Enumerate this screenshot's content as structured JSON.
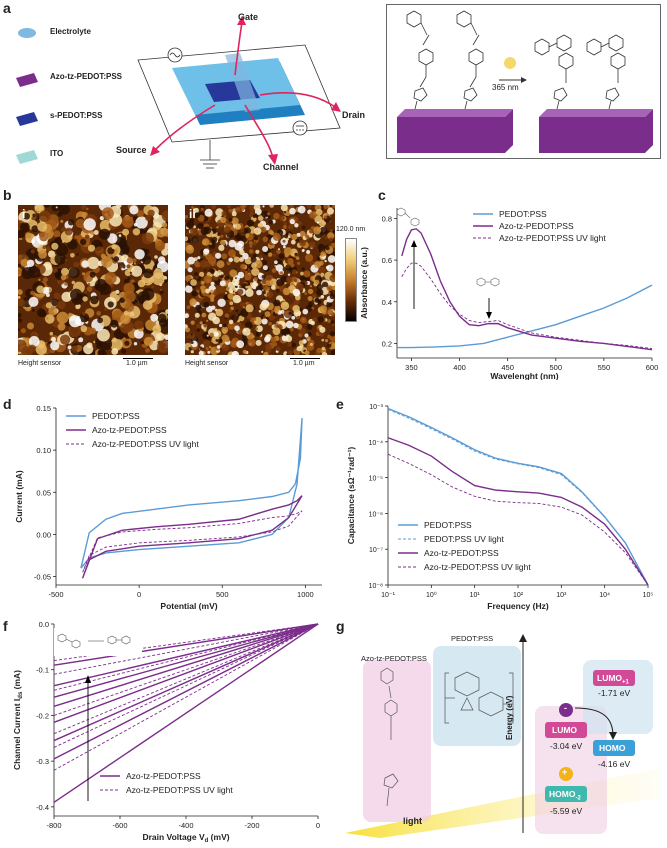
{
  "panels": {
    "a": "a",
    "b": "b",
    "c": "c",
    "d": "d",
    "e": "e",
    "f": "f",
    "g": "g"
  },
  "colors": {
    "pedot": "#5b9bd5",
    "azo": "#7b2d8b",
    "blue_dark": "#27389a",
    "ito": "#9fd8d6"
  },
  "panel_a": {
    "legend": [
      {
        "label": "Electrolyte",
        "color": "#7fb8e0"
      },
      {
        "label": "Azo-tz-PEDOT:PSS",
        "color": "#7b2d8b"
      },
      {
        "label": "s-PEDOT:PSS",
        "color": "#27389a"
      },
      {
        "label": "ITO",
        "color": "#9fd8d6"
      }
    ],
    "device_labels": {
      "gate": "Gate",
      "drain": "Drain",
      "source": "Source",
      "channel": "Channel"
    },
    "wavelength": "365 nm"
  },
  "panel_b": {
    "images": [
      {
        "index": "i",
        "caption": "Height sensor",
        "scale": "1.0 µm"
      },
      {
        "index": "ii",
        "caption": "Height sensor",
        "scale": "1.0 µm"
      }
    ],
    "colorbar_max": "120.0 nm"
  },
  "chart_data": [
    {
      "id": "c",
      "type": "line",
      "xlabel": "Wavelenght (nm)",
      "ylabel": "Absorbance (a.u.)",
      "xlim": [
        335,
        600
      ],
      "ylim": [
        0.13,
        0.85
      ],
      "xticks": [
        350,
        400,
        450,
        500,
        550,
        600
      ],
      "yticks": [
        0.2,
        0.4,
        0.6,
        0.8
      ],
      "legend_position": "top-right",
      "series": [
        {
          "name": "PEDOT:PSS",
          "color": "#5b9bd5",
          "dash": "",
          "points": [
            [
              335,
              0.18
            ],
            [
              350,
              0.18
            ],
            [
              375,
              0.183
            ],
            [
              400,
              0.188
            ],
            [
              425,
              0.2
            ],
            [
              450,
              0.23
            ],
            [
              475,
              0.26
            ],
            [
              500,
              0.29
            ],
            [
              525,
              0.33
            ],
            [
              550,
              0.37
            ],
            [
              575,
              0.42
            ],
            [
              600,
              0.48
            ]
          ]
        },
        {
          "name": "Azo-tz-PEDOT:PSS",
          "color": "#7b2d8b",
          "dash": "",
          "points": [
            [
              340,
              0.62
            ],
            [
              345,
              0.7
            ],
            [
              350,
              0.745
            ],
            [
              355,
              0.75
            ],
            [
              360,
              0.73
            ],
            [
              370,
              0.63
            ],
            [
              380,
              0.5
            ],
            [
              390,
              0.4
            ],
            [
              400,
              0.33
            ],
            [
              410,
              0.29
            ],
            [
              420,
              0.285
            ],
            [
              430,
              0.295
            ],
            [
              440,
              0.295
            ],
            [
              450,
              0.275
            ],
            [
              475,
              0.24
            ],
            [
              500,
              0.225
            ],
            [
              525,
              0.21
            ],
            [
              550,
              0.2
            ],
            [
              575,
              0.185
            ],
            [
              600,
              0.17
            ]
          ]
        },
        {
          "name": "Azo-tz-PEDOT:PSS UV light",
          "color": "#7b2d8b",
          "dash": "3,2",
          "points": [
            [
              340,
              0.52
            ],
            [
              345,
              0.56
            ],
            [
              350,
              0.585
            ],
            [
              355,
              0.585
            ],
            [
              360,
              0.57
            ],
            [
              370,
              0.51
            ],
            [
              380,
              0.44
            ],
            [
              390,
              0.38
            ],
            [
              400,
              0.34
            ],
            [
              410,
              0.31
            ],
            [
              420,
              0.3
            ],
            [
              430,
              0.305
            ],
            [
              440,
              0.31
            ],
            [
              450,
              0.29
            ],
            [
              475,
              0.25
            ],
            [
              500,
              0.23
            ],
            [
              525,
              0.215
            ],
            [
              550,
              0.2
            ],
            [
              575,
              0.19
            ],
            [
              600,
              0.175
            ]
          ]
        }
      ]
    },
    {
      "id": "d",
      "type": "line",
      "xlabel": "Potential (mV)",
      "ylabel": "Current (mA)",
      "xlim": [
        -500,
        1100
      ],
      "ylim": [
        -0.06,
        0.15
      ],
      "xticks": [
        -500,
        0,
        500,
        1000
      ],
      "yticks": [
        -0.05,
        0.0,
        0.05,
        0.1,
        0.15
      ],
      "legend_position": "top-left",
      "series": [
        {
          "name": "PEDOT:PSS",
          "color": "#5b9bd5",
          "dash": "",
          "points": [
            [
              -350,
              -0.04
            ],
            [
              -300,
              -0.028
            ],
            [
              -200,
              -0.022
            ],
            [
              0,
              -0.018
            ],
            [
              300,
              -0.014
            ],
            [
              600,
              -0.01
            ],
            [
              800,
              0.0
            ],
            [
              900,
              0.02
            ],
            [
              950,
              0.06
            ],
            [
              980,
              0.138
            ],
            [
              970,
              0.09
            ],
            [
              940,
              0.06
            ],
            [
              900,
              0.05
            ],
            [
              800,
              0.045
            ],
            [
              600,
              0.04
            ],
            [
              300,
              0.035
            ],
            [
              100,
              0.03
            ],
            [
              -100,
              0.025
            ],
            [
              -200,
              0.018
            ],
            [
              -300,
              0.002
            ],
            [
              -350,
              -0.04
            ]
          ]
        },
        {
          "name": "Azo-tz-PEDOT:PSS",
          "color": "#7b2d8b",
          "dash": "",
          "points": [
            [
              -340,
              -0.052
            ],
            [
              -300,
              -0.03
            ],
            [
              -200,
              -0.02
            ],
            [
              0,
              -0.014
            ],
            [
              300,
              -0.01
            ],
            [
              600,
              -0.005
            ],
            [
              800,
              0.005
            ],
            [
              900,
              0.02
            ],
            [
              980,
              0.046
            ],
            [
              950,
              0.04
            ],
            [
              900,
              0.035
            ],
            [
              800,
              0.03
            ],
            [
              600,
              0.018
            ],
            [
              300,
              0.012
            ],
            [
              100,
              0.009
            ],
            [
              -100,
              0.005
            ],
            [
              -250,
              -0.005
            ],
            [
              -340,
              -0.052
            ]
          ]
        },
        {
          "name": "Azo-tz-PEDOT:PSS UV light",
          "color": "#7b2d8b",
          "dash": "3,2",
          "points": [
            [
              -340,
              -0.045
            ],
            [
              -300,
              -0.025
            ],
            [
              -200,
              -0.015
            ],
            [
              0,
              -0.01
            ],
            [
              300,
              -0.007
            ],
            [
              600,
              -0.003
            ],
            [
              800,
              0.003
            ],
            [
              900,
              0.01
            ],
            [
              980,
              0.028
            ],
            [
              950,
              0.025
            ],
            [
              900,
              0.022
            ],
            [
              800,
              0.02
            ],
            [
              600,
              0.013
            ],
            [
              300,
              0.008
            ],
            [
              100,
              0.006
            ],
            [
              -100,
              0.003
            ],
            [
              -250,
              -0.004
            ],
            [
              -340,
              -0.045
            ]
          ]
        }
      ]
    },
    {
      "id": "e",
      "type": "line",
      "xscale": "log",
      "yscale": "log",
      "xlabel": "Frequency (Hz)",
      "ylabel": "Capacitance (sΩ⁻¹rad⁻¹)",
      "xlim": [
        0.1,
        100000
      ],
      "ylim": [
        1e-08,
        0.001
      ],
      "xticks": [
        "10⁻¹",
        "10⁰",
        "10¹",
        "10²",
        "10³",
        "10⁴",
        "10⁵"
      ],
      "yticks": [
        "10⁻⁸",
        "10⁻⁷",
        "10⁻⁶",
        "10⁻⁵",
        "10⁻⁴",
        "10⁻³"
      ],
      "legend_position": "bottom-left",
      "series": [
        {
          "name": "PEDOT:PSS",
          "color": "#5b9bd5",
          "dash": "",
          "points": [
            [
              0.1,
              0.00085
            ],
            [
              0.3,
              0.0005
            ],
            [
              1,
              0.00025
            ],
            [
              3,
              0.00013
            ],
            [
              10,
              6e-05
            ],
            [
              30,
              3.5e-05
            ],
            [
              100,
              2.5e-05
            ],
            [
              300,
              2e-05
            ],
            [
              1000,
              1.3e-05
            ],
            [
              3000,
              4e-06
            ],
            [
              10000,
              8e-07
            ],
            [
              30000,
              1.5e-07
            ],
            [
              100000,
              1e-08
            ]
          ]
        },
        {
          "name": "PEDOT:PSS UV light",
          "color": "#5b9bd5",
          "dash": "3,2",
          "points": [
            [
              0.1,
              0.0008
            ],
            [
              0.3,
              0.00046
            ],
            [
              1,
              0.00023
            ],
            [
              3,
              0.00012
            ],
            [
              10,
              5.5e-05
            ],
            [
              30,
              3.3e-05
            ],
            [
              100,
              2.4e-05
            ],
            [
              300,
              1.9e-05
            ],
            [
              1000,
              1.2e-05
            ],
            [
              3000,
              3.8e-06
            ],
            [
              10000,
              7.8e-07
            ],
            [
              30000,
              1.5e-07
            ],
            [
              100000,
              1e-08
            ]
          ]
        },
        {
          "name": "Azo-tz-PEDOT:PSS",
          "color": "#7b2d8b",
          "dash": "",
          "points": [
            [
              0.1,
              0.00013
            ],
            [
              0.3,
              8e-05
            ],
            [
              1,
              4e-05
            ],
            [
              3,
              1.5e-05
            ],
            [
              10,
              6e-06
            ],
            [
              30,
              4.5e-06
            ],
            [
              100,
              4e-06
            ],
            [
              300,
              3.7e-06
            ],
            [
              1000,
              2.8e-06
            ],
            [
              3000,
              1.5e-06
            ],
            [
              10000,
              5e-07
            ],
            [
              30000,
              1e-07
            ],
            [
              100000,
              1e-08
            ]
          ]
        },
        {
          "name": "Azo-tz-PEDOT:PSS UV light",
          "color": "#7b2d8b",
          "dash": "3,2",
          "points": [
            [
              0.1,
              4.5e-05
            ],
            [
              0.3,
              2.5e-05
            ],
            [
              1,
              1.2e-05
            ],
            [
              3,
              5.5e-06
            ],
            [
              10,
              3e-06
            ],
            [
              30,
              2.2e-06
            ],
            [
              100,
              2e-06
            ],
            [
              300,
              1.9e-06
            ],
            [
              1000,
              1.5e-06
            ],
            [
              3000,
              9e-07
            ],
            [
              10000,
              3e-07
            ],
            [
              30000,
              8e-08
            ],
            [
              100000,
              1e-08
            ]
          ]
        }
      ]
    },
    {
      "id": "f",
      "type": "line",
      "xlabel": "Drain Voltage V",
      "xlabel_sub": "d",
      "xlabel_unit": " (mV)",
      "ylabel": "Channel Current I",
      "ylabel_sub": "ds",
      "ylabel_unit": " (mA)",
      "xlim": [
        -800,
        0
      ],
      "ylim": [
        -0.42,
        0.0
      ],
      "xticks": [
        -800,
        -600,
        -400,
        -200,
        0
      ],
      "yticks": [
        0.0,
        -0.1,
        -0.2,
        -0.3,
        -0.4
      ],
      "legend_position": "bottom-center",
      "solid_endpoints": [
        -0.09,
        -0.135,
        -0.16,
        -0.18,
        -0.215,
        -0.255,
        -0.295,
        -0.39
      ],
      "dashed_endpoints": [
        -0.08,
        -0.11,
        -0.145,
        -0.2,
        -0.24,
        -0.27,
        -0.32
      ],
      "series": [
        {
          "name": "Azo-tz-PEDOT:PSS",
          "color": "#7b2d8b",
          "dash": ""
        },
        {
          "name": "Azo-tz-PEDOT:PSS UV light",
          "color": "#7b2d8b",
          "dash": "3,2"
        }
      ]
    }
  ],
  "panel_g": {
    "molecule_labels": [
      "Azo-tz-PEDOT:PSS",
      "PEDOT:PSS"
    ],
    "energy_axis": "Energy (eV)",
    "light": "light",
    "levels": [
      {
        "label": "LUMO",
        "value": "-3.04 eV",
        "color": "#d24a97"
      },
      {
        "label": "LUMO",
        "sub": "+1",
        "value": "-1.71 eV",
        "color": "#d24a97"
      },
      {
        "label": "HOMO",
        "value": "-4.16 eV",
        "color": "#3ba0d8"
      },
      {
        "label": "HOMO",
        "sub": "-2",
        "value": "-5.59 eV",
        "color": "#3fb8ad"
      }
    ],
    "minus": "-",
    "plus": "+"
  }
}
